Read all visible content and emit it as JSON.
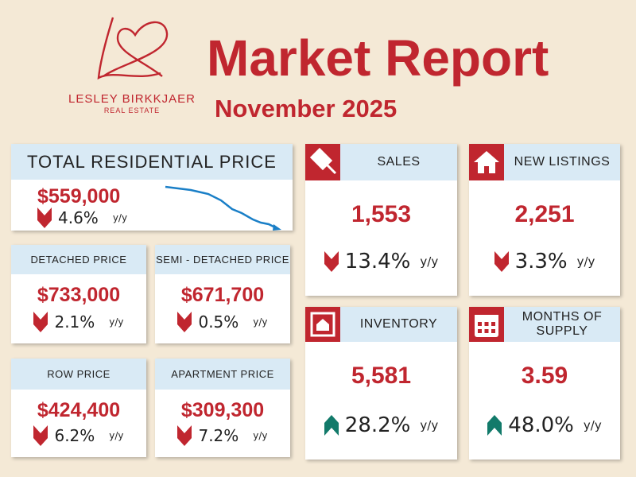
{
  "header": {
    "brand": "LESLEY BIRKKJAER",
    "brand_sub": "REAL ESTATE",
    "title": "Market Report",
    "subtitle": "November 2025"
  },
  "cards": [
    {
      "label": "TOTAL RESIDENTIAL PRICE",
      "value": "$559,000",
      "change": "4.6%",
      "unit": "y/y",
      "direction": "down"
    },
    {
      "label": "DETACHED PRICE",
      "value": "$733,000",
      "change": "2.1%",
      "unit": "y/y",
      "direction": "down"
    },
    {
      "label": "SEMI - DETACHED PRICE",
      "value": "$671,700",
      "change": "0.5%",
      "unit": "y/y",
      "direction": "down"
    },
    {
      "label": "ROW PRICE",
      "value": "$424,400",
      "change": "6.2%",
      "unit": "y/y",
      "direction": "down"
    },
    {
      "label": "APARTMENT PRICE",
      "value": "$309,300",
      "change": "7.2%",
      "unit": "y/y",
      "direction": "down"
    },
    {
      "label": "SALES",
      "value": "1,553",
      "change": "13.4%",
      "unit": "y/y",
      "direction": "down"
    },
    {
      "label": "NEW LISTINGS",
      "value": "2,251",
      "change": "3.3%",
      "unit": "y/y",
      "direction": "down"
    },
    {
      "label": "INVENTORY",
      "value": "5,581",
      "change": "28.2%",
      "unit": "y/y",
      "direction": "up"
    },
    {
      "label": "MONTHS OF SUPPLY",
      "value": "3.59",
      "change": "48.0%",
      "unit": "y/y",
      "direction": "up"
    }
  ]
}
